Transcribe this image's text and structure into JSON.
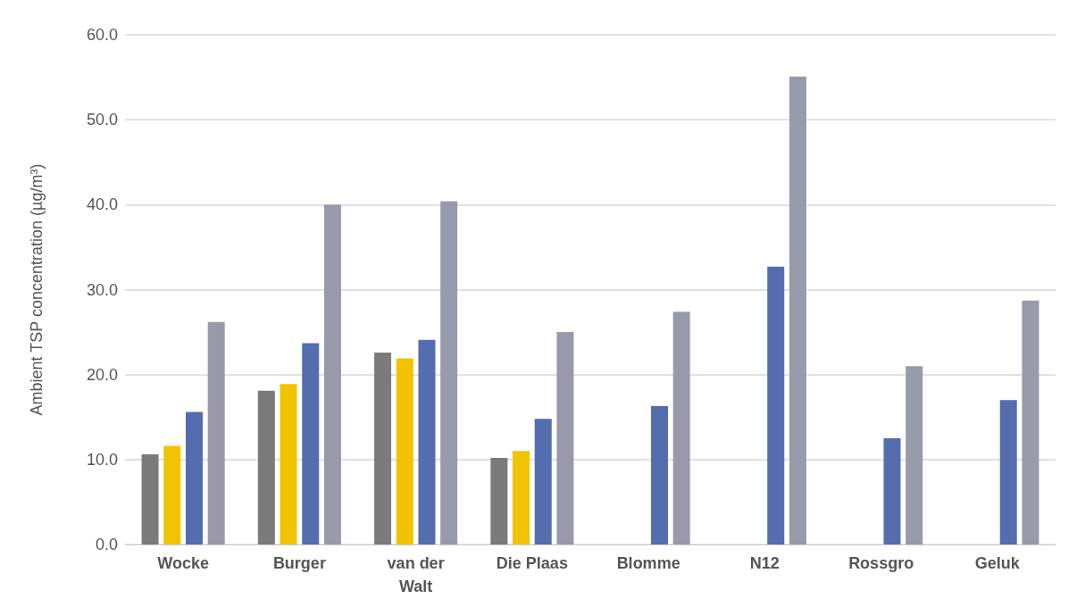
{
  "chart_data": {
    "type": "bar",
    "ylabel": "Ambient TSP concentration (µg/m³)",
    "categories": [
      "Wocke",
      "Burger",
      "van der\nWalt",
      "Die Plaas",
      "Blomme",
      "N12",
      "Rossgro",
      "Geluk"
    ],
    "series": [
      {
        "color": "#7b7b7b",
        "values": [
          10.6,
          18.1,
          22.6,
          10.2,
          null,
          null,
          null,
          null
        ]
      },
      {
        "color": "#f2c300",
        "values": [
          11.6,
          18.9,
          21.9,
          11.0,
          null,
          null,
          null,
          null
        ]
      },
      {
        "color": "#536daf",
        "values": [
          15.6,
          23.7,
          24.1,
          14.8,
          16.3,
          32.7,
          12.5,
          17.0
        ]
      },
      {
        "color": "#9899ab",
        "values": [
          26.2,
          40.0,
          40.4,
          25.0,
          27.4,
          55.1,
          21.0,
          28.7
        ]
      }
    ],
    "ylim": [
      0,
      60
    ],
    "yticks": [
      {
        "value": 0,
        "label": "0.0"
      },
      {
        "value": 10,
        "label": "10.0"
      },
      {
        "value": 20,
        "label": "20.0"
      },
      {
        "value": 30,
        "label": "30.0"
      },
      {
        "value": 40,
        "label": "40.0"
      },
      {
        "value": 50,
        "label": "50.0"
      },
      {
        "value": 60,
        "label": "60.0"
      }
    ],
    "grid": "y"
  }
}
